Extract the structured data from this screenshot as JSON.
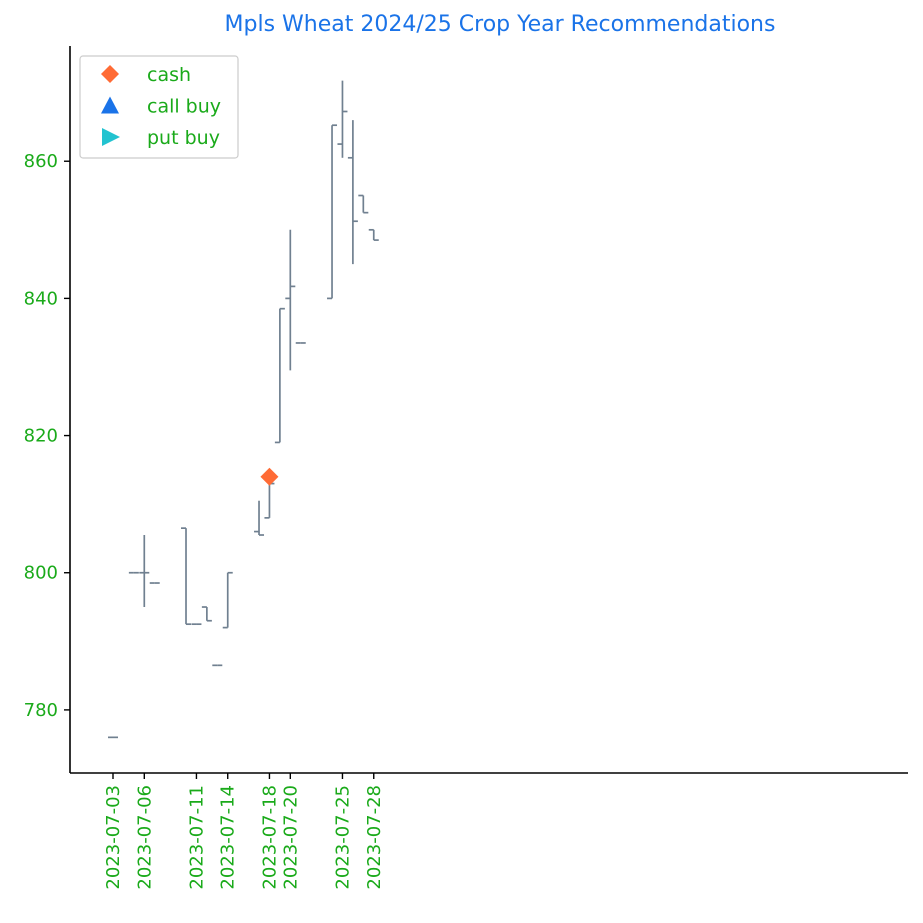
{
  "colors": {
    "title": "#1a73e8",
    "tick_label": "#1aaa1a",
    "axis": "#000000",
    "bar": "#708090",
    "cash": "#ff6b35",
    "call_buy": "#1a73e8",
    "put_buy": "#22c3d0",
    "legend_text": "#1aaa1a"
  },
  "chart_data": {
    "type": "ohlc",
    "title": "Mpls Wheat 2024/25 Crop Year Recommendations",
    "xlabel": "",
    "ylabel": "",
    "ylim": [
      770.8,
      876.8
    ],
    "yticks": [
      780,
      800,
      820,
      840,
      860
    ],
    "xticks": [
      "2023-07-03",
      "2023-07-06",
      "2023-07-11",
      "2023-07-14",
      "2023-07-18",
      "2023-07-20",
      "2023-07-25",
      "2023-07-28"
    ],
    "grid": false,
    "legend": {
      "placement": "top-left",
      "entries": [
        {
          "label": "cash",
          "marker": "diamond",
          "color_key": "cash"
        },
        {
          "label": "call buy",
          "marker": "triangle-up",
          "color_key": "call_buy"
        },
        {
          "label": "put buy",
          "marker": "triangle-right",
          "color_key": "put_buy"
        }
      ]
    },
    "bars": [
      {
        "date": "2023-07-03",
        "open": 776,
        "high": 776,
        "low": 776,
        "close": 776
      },
      {
        "date": "2023-07-05",
        "open": 800,
        "high": 800,
        "low": 800,
        "close": 800
      },
      {
        "date": "2023-07-06",
        "open": 800,
        "high": 805.5,
        "low": 795,
        "close": 800
      },
      {
        "date": "2023-07-07",
        "open": 798.5,
        "high": 798.5,
        "low": 798.5,
        "close": 798.5
      },
      {
        "date": "2023-07-10",
        "open": 806.5,
        "high": 806.5,
        "low": 792.5,
        "close": 792.5
      },
      {
        "date": "2023-07-11",
        "open": 792.5,
        "high": 792.5,
        "low": 792.5,
        "close": 792.5
      },
      {
        "date": "2023-07-12",
        "open": 795,
        "high": 795,
        "low": 793,
        "close": 793
      },
      {
        "date": "2023-07-13",
        "open": 786.5,
        "high": 786.5,
        "low": 786.5,
        "close": 786.5
      },
      {
        "date": "2023-07-14",
        "open": 792,
        "high": 800,
        "low": 792,
        "close": 800
      },
      {
        "date": "2023-07-17",
        "open": 806,
        "high": 810.5,
        "low": 805.5,
        "close": 805.5
      },
      {
        "date": "2023-07-18",
        "open": 808,
        "high": 813,
        "low": 808,
        "close": 813
      },
      {
        "date": "2023-07-19",
        "open": 819,
        "high": 838.5,
        "low": 819,
        "close": 838.5
      },
      {
        "date": "2023-07-20",
        "open": 840,
        "high": 850,
        "low": 829.5,
        "close": 841.75
      },
      {
        "date": "2023-07-21",
        "open": 833.5,
        "high": 833.5,
        "low": 833.5,
        "close": 833.5
      },
      {
        "date": "2023-07-24",
        "open": 840,
        "high": 865.25,
        "low": 840,
        "close": 865.25
      },
      {
        "date": "2023-07-25",
        "open": 862.5,
        "high": 871.75,
        "low": 860.5,
        "close": 867.25
      },
      {
        "date": "2023-07-26",
        "open": 860.5,
        "high": 866,
        "low": 845,
        "close": 851.25
      },
      {
        "date": "2023-07-27",
        "open": 855,
        "high": 855,
        "low": 852.5,
        "close": 852.5
      },
      {
        "date": "2023-07-28",
        "open": 850,
        "high": 850,
        "low": 848.5,
        "close": 848.5
      }
    ],
    "signals": [
      {
        "type": "cash",
        "date": "2023-07-18",
        "value": 814
      }
    ]
  }
}
